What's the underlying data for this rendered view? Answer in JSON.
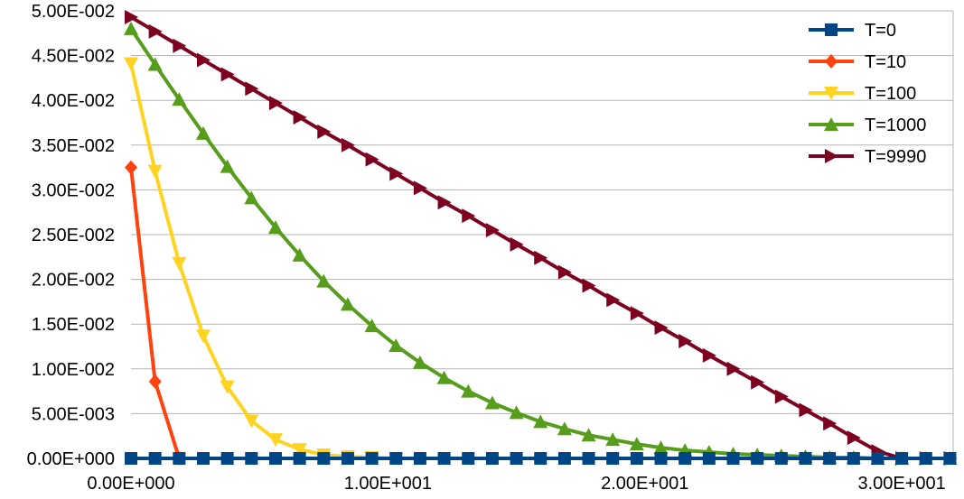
{
  "chart_data": {
    "type": "line",
    "title": "",
    "xlabel": "",
    "ylabel": "",
    "xlim": [
      0,
      32
    ],
    "ylim": [
      0,
      0.05
    ],
    "x_ticks": [
      0,
      10,
      20,
      30
    ],
    "x_tick_labels": [
      "0.00E+000",
      "1.00E+001",
      "2.00E+001",
      "3.00E+001"
    ],
    "y_ticks": [
      0,
      0.005,
      0.01,
      0.015,
      0.02,
      0.025,
      0.03,
      0.035,
      0.04,
      0.045,
      0.05
    ],
    "y_tick_labels": [
      "0.00E+000",
      "5.00E-003",
      "1.00E-002",
      "1.50E-002",
      "2.00E-002",
      "2.50E-002",
      "3.00E-002",
      "3.50E-002",
      "4.00E-002",
      "4.50E-002",
      "5.00E-002"
    ],
    "grid": {
      "horizontal": true,
      "vertical": false
    },
    "legend_position": "top-right",
    "series": [
      {
        "name": "T=0",
        "color": "#004586",
        "marker": "square",
        "x": [
          0,
          0.9375,
          1.875,
          2.8125,
          3.75,
          4.6875,
          5.625,
          6.5625,
          7.5,
          8.4375,
          9.375,
          10.3125,
          11.25,
          12.1875,
          13.125,
          14.0625,
          15,
          15.9375,
          16.875,
          17.8125,
          18.75,
          19.6875,
          20.625,
          21.5625,
          22.5,
          23.4375,
          24.375,
          25.3125,
          26.25,
          27.1875,
          28.125,
          29.0625,
          30,
          30.9375,
          31.875
        ],
        "y": [
          0,
          0,
          0,
          0,
          0,
          0,
          0,
          0,
          0,
          0,
          0,
          0,
          0,
          0,
          0,
          0,
          0,
          0,
          0,
          0,
          0,
          0,
          0,
          0,
          0,
          0,
          0,
          0,
          0,
          0,
          0,
          0,
          0,
          0,
          0
        ]
      },
      {
        "name": "T=10",
        "color": "#ff420e",
        "marker": "diamond",
        "x": [
          0,
          0.9375,
          1.875
        ],
        "y": [
          0.0325,
          0.0086,
          0
        ]
      },
      {
        "name": "T=100",
        "color": "#ffd320",
        "marker": "triangle-down",
        "x": [
          0,
          0.9375,
          1.875,
          2.8125,
          3.75,
          4.6875,
          5.625,
          6.5625,
          7.5,
          8.4375,
          9.375,
          10.3125
        ],
        "y": [
          0.0441,
          0.0321,
          0.0218,
          0.0137,
          0.008,
          0.0042,
          0.0021,
          0.001,
          0.0004,
          0.0002,
          0.0001,
          0
        ]
      },
      {
        "name": "T=1000",
        "color": "#579d1c",
        "marker": "triangle-up",
        "x": [
          0,
          0.9375,
          1.875,
          2.8125,
          3.75,
          4.6875,
          5.625,
          6.5625,
          7.5,
          8.4375,
          9.375,
          10.3125,
          11.25,
          12.1875,
          13.125,
          14.0625,
          15,
          15.9375,
          16.875,
          17.8125,
          18.75,
          19.6875,
          20.625,
          21.5625,
          22.5,
          23.4375,
          24.375,
          25.3125,
          26.25,
          27.1875,
          28.125,
          29.0625,
          30,
          30.9375,
          31.875
        ],
        "y": [
          0.048,
          0.044,
          0.0401,
          0.0363,
          0.0326,
          0.0291,
          0.0258,
          0.0227,
          0.0198,
          0.0172,
          0.0148,
          0.0126,
          0.0107,
          0.009,
          0.0075,
          0.0062,
          0.0051,
          0.0041,
          0.0033,
          0.0026,
          0.0021,
          0.0016,
          0.0012,
          0.0009,
          0.0007,
          0.0005,
          0.0004,
          0.0003,
          0.0002,
          0.0001,
          0.0001,
          0,
          0,
          0,
          0
        ]
      },
      {
        "name": "T=9990",
        "color": "#7e0021",
        "marker": "triangle-right",
        "x": [
          0,
          0.9375,
          1.875,
          2.8125,
          3.75,
          4.6875,
          5.625,
          6.5625,
          7.5,
          8.4375,
          9.375,
          10.3125,
          11.25,
          12.1875,
          13.125,
          14.0625,
          15,
          15.9375,
          16.875,
          17.8125,
          18.75,
          19.6875,
          20.625,
          21.5625,
          22.5,
          23.4375,
          24.375,
          25.3125,
          26.25,
          27.1875,
          28.125,
          29.0625,
          30,
          30.9375,
          31.875
        ],
        "y": [
          0.0493,
          0.0477,
          0.0461,
          0.0445,
          0.0429,
          0.0413,
          0.0397,
          0.0381,
          0.0365,
          0.035,
          0.0334,
          0.0318,
          0.0302,
          0.0286,
          0.0271,
          0.0255,
          0.0239,
          0.0224,
          0.0208,
          0.0193,
          0.0177,
          0.0162,
          0.0146,
          0.0131,
          0.0115,
          0.01,
          0.0085,
          0.0069,
          0.0054,
          0.0039,
          0.0023,
          0.0008,
          0,
          0,
          0
        ]
      }
    ]
  }
}
